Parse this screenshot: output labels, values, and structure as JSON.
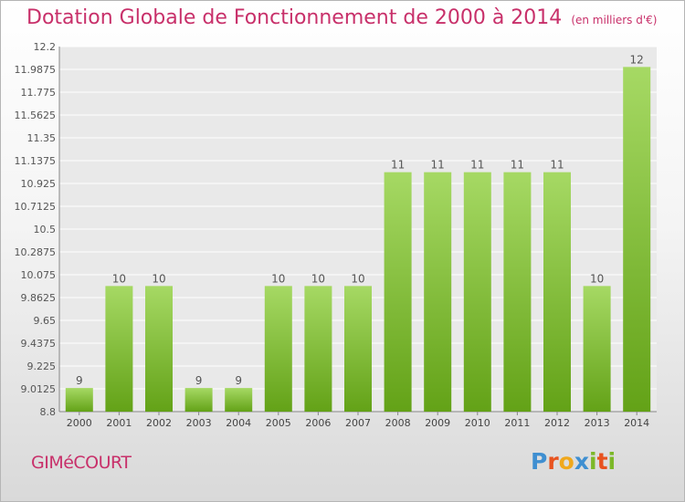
{
  "title": "Dotation Globale de Fonctionnement de 2000 à 2014",
  "subtitle": "(en milliers d'€)",
  "commune": "GIMéCOURT",
  "logo": {
    "letters": [
      "P",
      "r",
      "o",
      "x",
      "i",
      "t",
      "i"
    ],
    "colors": [
      "#3f8fd1",
      "#e8531f",
      "#f0a81c",
      "#3f8fd1",
      "#7cb828",
      "#e8531f",
      "#7cb828"
    ]
  },
  "colors": {
    "bar_top": "#a6d964",
    "bar_bottom": "#63a217",
    "title": "#c8306a",
    "grid": "#ffffff"
  },
  "chart_data": {
    "type": "bar",
    "categories": [
      "2000",
      "2001",
      "2002",
      "2003",
      "2004",
      "2005",
      "2006",
      "2007",
      "2008",
      "2009",
      "2010",
      "2011",
      "2012",
      "2013",
      "2014"
    ],
    "values": [
      9.02,
      9.97,
      9.97,
      9.02,
      9.02,
      9.97,
      9.97,
      9.97,
      11.03,
      11.03,
      11.03,
      11.03,
      11.03,
      9.97,
      12.01
    ],
    "data_labels": [
      "9",
      "10",
      "10",
      "9",
      "9",
      "10",
      "10",
      "10",
      "11",
      "11",
      "11",
      "11",
      "11",
      "10",
      "12"
    ],
    "yticks": [
      "8.8",
      "9.0125",
      "9.225",
      "9.4375",
      "9.65",
      "9.8625",
      "10.075",
      "10.2875",
      "10.5",
      "10.7125",
      "10.925",
      "11.1375",
      "11.35",
      "11.5625",
      "11.775",
      "11.9875",
      "12.2"
    ],
    "ylim": [
      8.8,
      12.2
    ],
    "grid": true,
    "xlabel": "",
    "ylabel": ""
  }
}
